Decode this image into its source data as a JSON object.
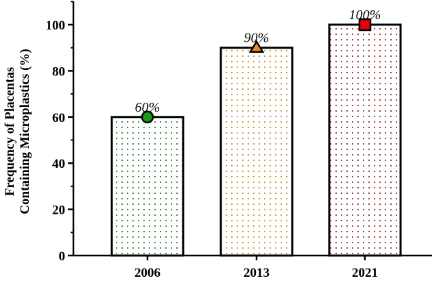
{
  "chart_data": {
    "type": "bar",
    "title": "",
    "xlabel": "",
    "ylabel_lines": [
      "Frequency of Placentas",
      "Containing Microplastics (%)"
    ],
    "categories": [
      "2006",
      "2013",
      "2021"
    ],
    "values": [
      60,
      90,
      100
    ],
    "data_labels": [
      "60%",
      "90%",
      "100%"
    ],
    "markers": [
      "circle",
      "triangle",
      "square"
    ],
    "marker_colors": [
      "#1a9a1a",
      "#f08a1c",
      "#e8000b"
    ],
    "pattern_colors": [
      "#2e7d32",
      "#d98a2b",
      "#a0282a"
    ],
    "ylim": [
      0,
      110
    ],
    "yticks": [
      0,
      20,
      40,
      60,
      80,
      100
    ],
    "ytick_labels": [
      "0",
      "20",
      "40",
      "60",
      "80",
      "100"
    ],
    "grid": false,
    "legend": "none"
  }
}
